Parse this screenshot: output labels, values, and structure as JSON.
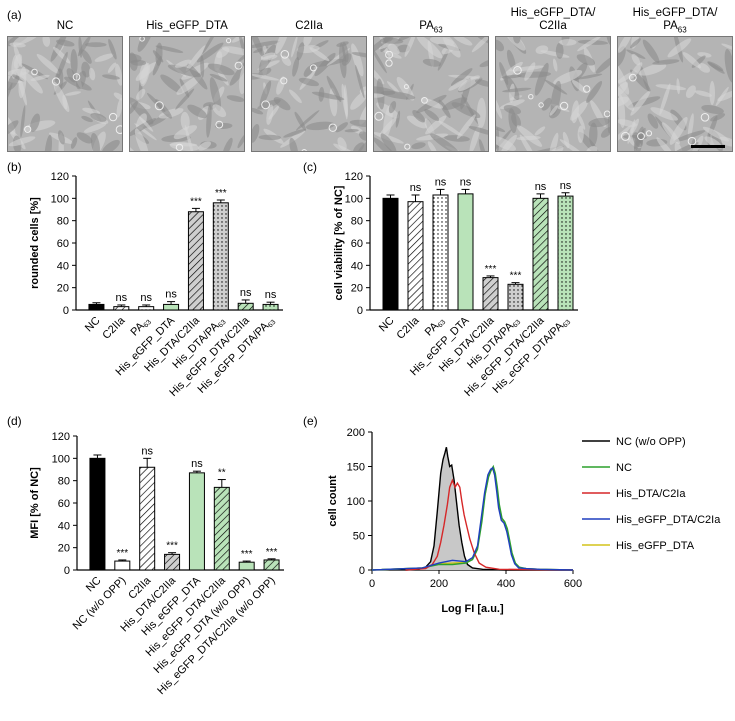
{
  "figure": {
    "panel_letters": {
      "a": "(a)",
      "b": "(b)",
      "c": "(c)",
      "d": "(d)",
      "e": "(e)"
    },
    "micrographs": [
      {
        "line1": "NC",
        "line2": ""
      },
      {
        "line1": "His_eGFP_DTA",
        "line2": ""
      },
      {
        "line1": "C2IIa",
        "line2": ""
      },
      {
        "line1": "PA63",
        "line2": ""
      },
      {
        "line1": "His_eGFP_DTA/",
        "line2": "C2IIa"
      },
      {
        "line1": "His_eGFP_DTA/",
        "line2": "PA63"
      }
    ]
  },
  "chart_data": [
    {
      "panel": "b",
      "type": "bar",
      "ylabel": "rounded cells [%]",
      "ylim": [
        0,
        120
      ],
      "yticks": [
        "0",
        "20",
        "40",
        "60",
        "80",
        "100",
        "120"
      ],
      "categories": [
        "NC",
        "C2IIa",
        "PA63",
        "His_eGFP_DTA",
        "His_DTA/C2IIa",
        "His_DTA/PA63",
        "His_eGFP_DTA/C2IIa",
        "His_eGFP_DTA/PA63"
      ],
      "values": [
        5,
        3,
        3,
        5,
        88,
        96,
        6,
        5
      ],
      "errors": [
        1.5,
        1.5,
        1.5,
        2.5,
        3,
        2.5,
        3,
        2
      ],
      "significance": [
        "",
        "ns",
        "ns",
        "ns",
        "***",
        "***",
        "ns",
        "ns"
      ],
      "fills": [
        "black",
        "hatch",
        "dots",
        "green",
        "gray-hatch",
        "gray-dots",
        "green-hatch",
        "green-dots"
      ]
    },
    {
      "panel": "c",
      "type": "bar",
      "ylabel": "cell viability [% of NC]",
      "ylim": [
        0,
        120
      ],
      "yticks": [
        "0",
        "20",
        "40",
        "60",
        "80",
        "100",
        "120"
      ],
      "categories": [
        "NC",
        "C2IIa",
        "PA63",
        "His_eGFP_DTA",
        "His_DTA/C2IIa",
        "His_DTA/PA63",
        "His_eGFP_DTA/C2IIa",
        "His_eGFP_DTA/PA63"
      ],
      "values": [
        100,
        97,
        103,
        104,
        29,
        23,
        100,
        102
      ],
      "errors": [
        3,
        6,
        5,
        4,
        1.5,
        1.5,
        4,
        3
      ],
      "significance": [
        "",
        "ns",
        "ns",
        "ns",
        "***",
        "***",
        "ns",
        "ns"
      ],
      "fills": [
        "black",
        "hatch",
        "dots",
        "green",
        "gray-hatch",
        "gray-dots",
        "green-hatch",
        "green-dots"
      ]
    },
    {
      "panel": "d",
      "type": "bar",
      "ylabel": "MFI [% of NC]",
      "ylim": [
        0,
        120
      ],
      "yticks": [
        "0",
        "20",
        "40",
        "60",
        "80",
        "100",
        "120"
      ],
      "categories": [
        "NC",
        "NC (w/o OPP)",
        "C2IIa",
        "His_DTA/C2IIa",
        "His_eGFP_DTA",
        "His_eGFP_DTA/C2IIa",
        "His_eGFP_DTA (w/o OPP)",
        "His_eGFP_DTA/C2IIa (w/o OPP)"
      ],
      "values": [
        100,
        8,
        92,
        14,
        87,
        74,
        7,
        9
      ],
      "errors": [
        3,
        1,
        8,
        1.5,
        1.5,
        7,
        1,
        1
      ],
      "significance": [
        "",
        "***",
        "ns",
        "***",
        "ns",
        "**",
        "***",
        "***"
      ],
      "fills": [
        "black",
        "white",
        "hatch",
        "gray-hatch",
        "green",
        "green-hatch",
        "green",
        "green-hatch"
      ]
    },
    {
      "panel": "e",
      "type": "line",
      "xlabel": "Log FI [a.u.]",
      "ylabel": "cell count",
      "xlim": [
        0,
        600
      ],
      "ylim": [
        0,
        200
      ],
      "xticks": [
        "0",
        "200",
        "400",
        "600"
      ],
      "yticks": [
        "0",
        "50",
        "100",
        "150",
        "200"
      ],
      "series": [
        {
          "name": "NC (w/o OPP)",
          "color": "#000000",
          "filled": true,
          "x": [
            100,
            140,
            160,
            175,
            185,
            195,
            205,
            212,
            218,
            222,
            226,
            232,
            238,
            245,
            252,
            260,
            268,
            276,
            285,
            300,
            330,
            400,
            600
          ],
          "y": [
            0,
            1,
            4,
            12,
            35,
            85,
            140,
            160,
            170,
            178,
            165,
            150,
            152,
            130,
            100,
            65,
            40,
            20,
            8,
            3,
            1,
            0,
            0
          ]
        },
        {
          "name": "NC",
          "color": "#2ca02c",
          "filled": false,
          "x": [
            0,
            150,
            200,
            240,
            280,
            300,
            315,
            328,
            338,
            348,
            356,
            362,
            368,
            374,
            380,
            388,
            396,
            404,
            410,
            418,
            428,
            440,
            460,
            500,
            600
          ],
          "y": [
            0,
            3,
            8,
            8,
            10,
            15,
            30,
            70,
            110,
            135,
            145,
            150,
            140,
            120,
            95,
            75,
            70,
            60,
            45,
            25,
            10,
            4,
            2,
            1,
            0
          ]
        },
        {
          "name": "His_DTA/C2Ia",
          "color": "#d62728",
          "filled": false,
          "x": [
            100,
            160,
            180,
            195,
            205,
            215,
            225,
            232,
            240,
            248,
            255,
            262,
            268,
            275,
            282,
            292,
            305,
            320,
            340,
            380,
            600
          ],
          "y": [
            0,
            2,
            8,
            20,
            40,
            65,
            95,
            120,
            130,
            120,
            126,
            120,
            100,
            80,
            65,
            45,
            25,
            10,
            4,
            1,
            0
          ]
        },
        {
          "name": "His_eGFP_DTA/C2Ia",
          "color": "#1f3fbf",
          "filled": false,
          "x": [
            0,
            150,
            200,
            240,
            280,
            300,
            315,
            326,
            336,
            346,
            354,
            360,
            366,
            372,
            378,
            386,
            394,
            402,
            408,
            416,
            426,
            438,
            460,
            500,
            600
          ],
          "y": [
            0,
            3,
            10,
            14,
            12,
            18,
            35,
            75,
            112,
            138,
            146,
            148,
            138,
            115,
            90,
            72,
            68,
            56,
            42,
            22,
            9,
            3,
            2,
            1,
            0
          ]
        },
        {
          "name": "His_eGFP_DTA",
          "color": "#d4c41a",
          "filled": false,
          "x": [
            0,
            150,
            200,
            240,
            280,
            300,
            315,
            327,
            337,
            347,
            355,
            361,
            367,
            373,
            379,
            387,
            395,
            403,
            409,
            417,
            427,
            439,
            460,
            500,
            600
          ],
          "y": [
            0,
            3,
            9,
            10,
            11,
            16,
            32,
            72,
            108,
            134,
            144,
            147,
            136,
            118,
            92,
            73,
            69,
            58,
            44,
            24,
            9,
            3,
            2,
            1,
            0
          ]
        }
      ]
    }
  ]
}
